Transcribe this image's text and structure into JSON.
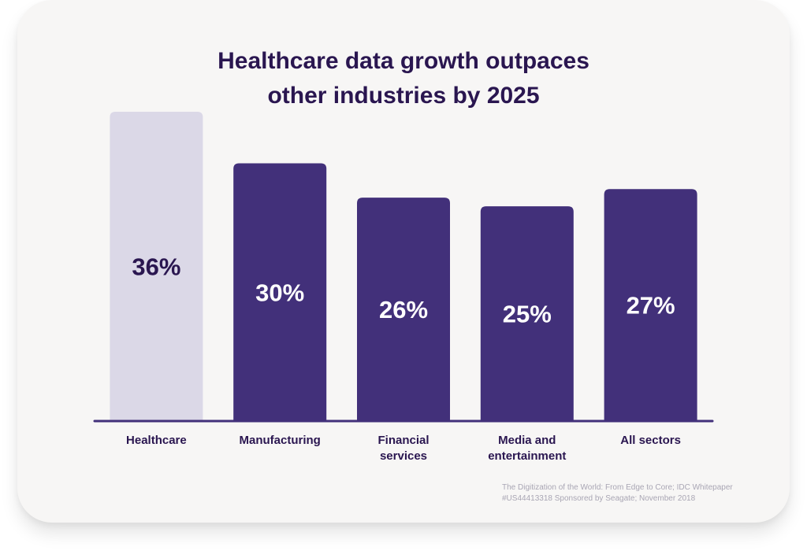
{
  "chart_data": {
    "type": "bar",
    "title_lines": [
      "Healthcare data growth outpaces",
      "other industries by 2025"
    ],
    "categories": [
      [
        "Healthcare"
      ],
      [
        "Manufacturing"
      ],
      [
        "Financial",
        "services"
      ],
      [
        "Media and",
        "entertainment"
      ],
      [
        "All sectors"
      ]
    ],
    "values": [
      36,
      30,
      26,
      25,
      27
    ],
    "value_labels": [
      "36%",
      "30%",
      "26%",
      "25%",
      "27%"
    ],
    "highlight_index": 0,
    "ylim": [
      0,
      36
    ],
    "xlabel": "",
    "ylabel": "",
    "grid": false,
    "legend": "none"
  },
  "colors": {
    "bar": "#42307a",
    "bar_highlight": "#dbd8e7",
    "label_on_bar": "#ffffff",
    "label_on_highlight": "#2a1650",
    "axis": "#42307a",
    "category_text": "#2a1650"
  },
  "source": {
    "lines": [
      "The Digitization of the World: From Edge to Core; IDC Whitepaper",
      "#US44413318 Sponsored by Seagate; November 2018"
    ]
  }
}
